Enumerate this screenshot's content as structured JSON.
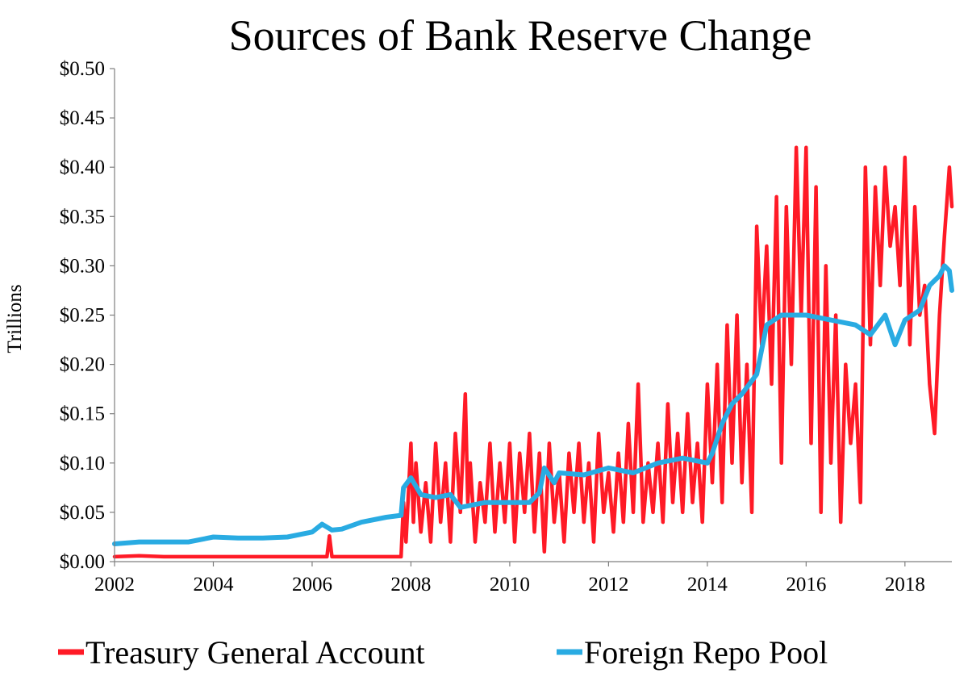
{
  "chart_data": {
    "type": "line",
    "title": "Sources of Bank Reserve Change",
    "ylabel": "Trillions",
    "xlabel": "",
    "xlim": [
      2002,
      2018.95
    ],
    "ylim": [
      0,
      0.5
    ],
    "x_ticks": [
      "2002",
      "2004",
      "2006",
      "2008",
      "2010",
      "2012",
      "2014",
      "2016",
      "2018"
    ],
    "y_ticks": [
      "$0.00",
      "$0.05",
      "$0.10",
      "$0.15",
      "$0.20",
      "$0.25",
      "$0.30",
      "$0.35",
      "$0.40",
      "$0.45",
      "$0.50"
    ],
    "grid": false,
    "legend_position": "bottom",
    "series": [
      {
        "name": "Treasury General Account",
        "color": "#ff1a26",
        "x": [
          2002.0,
          2002.5,
          2003.0,
          2003.5,
          2004.0,
          2004.5,
          2005.0,
          2005.5,
          2006.0,
          2006.3,
          2006.35,
          2006.4,
          2006.5,
          2007.0,
          2007.5,
          2007.8,
          2007.85,
          2007.9,
          2008.0,
          2008.05,
          2008.1,
          2008.2,
          2008.3,
          2008.4,
          2008.5,
          2008.6,
          2008.7,
          2008.8,
          2008.9,
          2009.0,
          2009.1,
          2009.15,
          2009.2,
          2009.3,
          2009.4,
          2009.5,
          2009.6,
          2009.7,
          2009.8,
          2009.9,
          2010.0,
          2010.1,
          2010.2,
          2010.3,
          2010.4,
          2010.5,
          2010.6,
          2010.7,
          2010.8,
          2010.9,
          2011.0,
          2011.1,
          2011.2,
          2011.3,
          2011.4,
          2011.5,
          2011.6,
          2011.7,
          2011.8,
          2011.9,
          2012.0,
          2012.1,
          2012.2,
          2012.3,
          2012.4,
          2012.5,
          2012.6,
          2012.7,
          2012.8,
          2012.9,
          2013.0,
          2013.1,
          2013.2,
          2013.3,
          2013.4,
          2013.5,
          2013.6,
          2013.7,
          2013.8,
          2013.9,
          2014.0,
          2014.1,
          2014.2,
          2014.3,
          2014.4,
          2014.5,
          2014.6,
          2014.7,
          2014.8,
          2014.9,
          2015.0,
          2015.1,
          2015.2,
          2015.3,
          2015.4,
          2015.5,
          2015.6,
          2015.7,
          2015.8,
          2015.9,
          2016.0,
          2016.1,
          2016.2,
          2016.3,
          2016.4,
          2016.5,
          2016.6,
          2016.7,
          2016.8,
          2016.9,
          2017.0,
          2017.1,
          2017.2,
          2017.3,
          2017.4,
          2017.5,
          2017.6,
          2017.7,
          2017.8,
          2017.9,
          2018.0,
          2018.1,
          2018.2,
          2018.3,
          2018.4,
          2018.5,
          2018.6,
          2018.7,
          2018.8,
          2018.9,
          2018.95
        ],
        "values": [
          0.005,
          0.006,
          0.005,
          0.005,
          0.005,
          0.005,
          0.005,
          0.005,
          0.005,
          0.005,
          0.026,
          0.005,
          0.005,
          0.005,
          0.005,
          0.005,
          0.06,
          0.02,
          0.12,
          0.04,
          0.1,
          0.03,
          0.08,
          0.02,
          0.12,
          0.04,
          0.1,
          0.02,
          0.13,
          0.05,
          0.17,
          0.06,
          0.1,
          0.02,
          0.08,
          0.04,
          0.12,
          0.03,
          0.1,
          0.04,
          0.12,
          0.02,
          0.11,
          0.05,
          0.13,
          0.03,
          0.11,
          0.01,
          0.12,
          0.04,
          0.09,
          0.02,
          0.11,
          0.05,
          0.12,
          0.04,
          0.1,
          0.02,
          0.13,
          0.05,
          0.09,
          0.03,
          0.11,
          0.04,
          0.14,
          0.05,
          0.18,
          0.04,
          0.1,
          0.05,
          0.12,
          0.04,
          0.16,
          0.06,
          0.13,
          0.05,
          0.15,
          0.06,
          0.12,
          0.04,
          0.18,
          0.08,
          0.2,
          0.06,
          0.24,
          0.1,
          0.25,
          0.08,
          0.2,
          0.05,
          0.34,
          0.22,
          0.32,
          0.18,
          0.37,
          0.1,
          0.36,
          0.2,
          0.42,
          0.25,
          0.42,
          0.12,
          0.38,
          0.05,
          0.3,
          0.1,
          0.25,
          0.04,
          0.2,
          0.12,
          0.18,
          0.06,
          0.4,
          0.22,
          0.38,
          0.28,
          0.4,
          0.32,
          0.36,
          0.28,
          0.41,
          0.22,
          0.36,
          0.25,
          0.28,
          0.18,
          0.13,
          0.25,
          0.33,
          0.4,
          0.36
        ]
      },
      {
        "name": "Foreign Repo Pool",
        "color": "#29abe2",
        "x": [
          2002.0,
          2002.5,
          2003.0,
          2003.5,
          2004.0,
          2004.5,
          2005.0,
          2005.5,
          2006.0,
          2006.2,
          2006.4,
          2006.6,
          2007.0,
          2007.5,
          2007.8,
          2007.85,
          2008.0,
          2008.2,
          2008.5,
          2008.8,
          2009.0,
          2009.5,
          2010.0,
          2010.4,
          2010.6,
          2010.7,
          2010.9,
          2011.0,
          2011.5,
          2012.0,
          2012.5,
          2013.0,
          2013.5,
          2014.0,
          2014.1,
          2014.3,
          2014.5,
          2014.7,
          2015.0,
          2015.2,
          2015.5,
          2016.0,
          2016.5,
          2017.0,
          2017.3,
          2017.6,
          2017.8,
          2018.0,
          2018.3,
          2018.5,
          2018.7,
          2018.8,
          2018.9,
          2018.95
        ],
        "values": [
          0.018,
          0.02,
          0.02,
          0.02,
          0.025,
          0.024,
          0.024,
          0.025,
          0.03,
          0.038,
          0.032,
          0.033,
          0.04,
          0.045,
          0.047,
          0.075,
          0.085,
          0.068,
          0.065,
          0.068,
          0.055,
          0.06,
          0.06,
          0.06,
          0.07,
          0.095,
          0.08,
          0.09,
          0.088,
          0.095,
          0.09,
          0.1,
          0.105,
          0.1,
          0.11,
          0.14,
          0.16,
          0.17,
          0.19,
          0.24,
          0.25,
          0.25,
          0.245,
          0.24,
          0.23,
          0.25,
          0.22,
          0.245,
          0.255,
          0.28,
          0.29,
          0.3,
          0.295,
          0.275
        ]
      }
    ]
  }
}
